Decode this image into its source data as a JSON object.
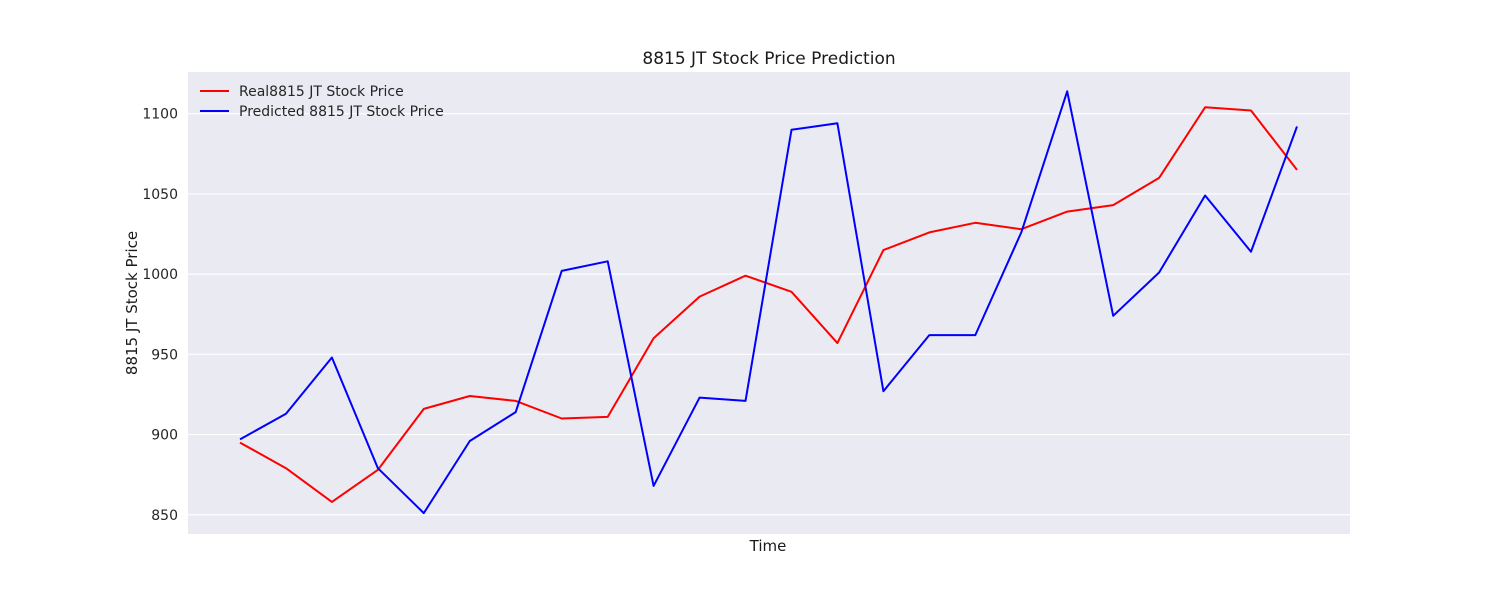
{
  "chart_data": {
    "type": "line",
    "title": "8815 JT Stock Price Prediction",
    "xlabel": "Time",
    "ylabel": "8815 JT Stock Price",
    "ylim": [
      838,
      1126
    ],
    "yticks": [
      850,
      900,
      950,
      1000,
      1050,
      1100
    ],
    "grid": true,
    "background_color": "#eaeaf2",
    "grid_color": "#ffffff",
    "legend_placement": "top-left",
    "x": [
      0,
      1,
      2,
      3,
      4,
      5,
      6,
      7,
      8,
      9,
      10,
      11,
      12,
      13,
      14,
      15,
      16,
      17,
      18,
      19,
      20,
      21,
      22,
      23
    ],
    "series": [
      {
        "name": "Real8815 JT Stock Price",
        "color": "#ff0000",
        "values": [
          895,
          879,
          858,
          878,
          916,
          924,
          921,
          910,
          911,
          960,
          986,
          999,
          989,
          957,
          1015,
          1026,
          1032,
          1028,
          1039,
          1043,
          1060,
          1104,
          1102,
          1065
        ]
      },
      {
        "name": "Predicted 8815 JT Stock Price",
        "color": "#0000ff",
        "values": [
          897,
          913,
          948,
          879,
          851,
          896,
          914,
          1002,
          1008,
          868,
          923,
          921,
          1090,
          1094,
          927,
          962,
          962,
          1026,
          1114,
          974,
          1001,
          1049,
          1014,
          1092
        ]
      }
    ]
  }
}
